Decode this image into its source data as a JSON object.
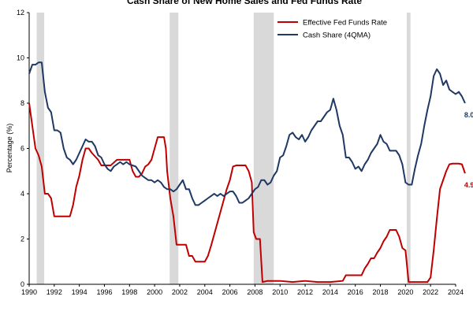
{
  "chart_data": {
    "type": "line",
    "title": "Cash Share of New Home Sales and Fed Funds Rate",
    "ylabel": "Percentage (%)",
    "xlabel": "",
    "xlim": [
      1990,
      2024
    ],
    "ylim": [
      0,
      12
    ],
    "yticks": [
      0,
      2,
      4,
      6,
      8,
      10,
      12
    ],
    "xticks": [
      1990,
      1992,
      1994,
      1996,
      1998,
      2000,
      2002,
      2004,
      2006,
      2008,
      2010,
      2012,
      2014,
      2016,
      2018,
      2020,
      2022,
      2024
    ],
    "grid": false,
    "legend_position": "top-center",
    "recessions": [
      [
        1990.6,
        1991.2
      ],
      [
        2001.2,
        2001.9
      ],
      [
        2007.9,
        2009.5
      ],
      [
        2020.1,
        2020.4
      ]
    ],
    "series": [
      {
        "name": "Effective Fed Funds Rate",
        "color": "#c00000",
        "end_label": "4.9%",
        "points": [
          [
            1990.0,
            8.0
          ],
          [
            1990.25,
            7.0
          ],
          [
            1990.5,
            6.0
          ],
          [
            1990.75,
            5.7
          ],
          [
            1991.0,
            5.2
          ],
          [
            1991.25,
            4.0
          ],
          [
            1991.5,
            4.0
          ],
          [
            1991.75,
            3.8
          ],
          [
            1992.0,
            3.0
          ],
          [
            1992.5,
            3.0
          ],
          [
            1993.0,
            3.0
          ],
          [
            1993.25,
            3.0
          ],
          [
            1993.5,
            3.5
          ],
          [
            1993.75,
            4.3
          ],
          [
            1994.0,
            4.8
          ],
          [
            1994.25,
            5.5
          ],
          [
            1994.5,
            6.0
          ],
          [
            1994.75,
            6.0
          ],
          [
            1995.0,
            5.8
          ],
          [
            1995.5,
            5.5
          ],
          [
            1995.75,
            5.25
          ],
          [
            1996.0,
            5.25
          ],
          [
            1996.5,
            5.25
          ],
          [
            1997.0,
            5.5
          ],
          [
            1997.5,
            5.5
          ],
          [
            1998.0,
            5.5
          ],
          [
            1998.25,
            5.0
          ],
          [
            1998.5,
            4.75
          ],
          [
            1998.75,
            4.75
          ],
          [
            1999.0,
            4.9
          ],
          [
            1999.25,
            5.2
          ],
          [
            1999.5,
            5.3
          ],
          [
            1999.75,
            5.5
          ],
          [
            2000.0,
            6.0
          ],
          [
            2000.25,
            6.5
          ],
          [
            2000.75,
            6.5
          ],
          [
            2000.9,
            6.0
          ],
          [
            2001.0,
            5.0
          ],
          [
            2001.25,
            3.8
          ],
          [
            2001.5,
            3.0
          ],
          [
            2001.75,
            1.75
          ],
          [
            2002.0,
            1.75
          ],
          [
            2002.5,
            1.75
          ],
          [
            2002.75,
            1.25
          ],
          [
            2003.0,
            1.25
          ],
          [
            2003.25,
            1.0
          ],
          [
            2003.75,
            1.0
          ],
          [
            2004.0,
            1.0
          ],
          [
            2004.25,
            1.25
          ],
          [
            2004.5,
            1.7
          ],
          [
            2004.75,
            2.2
          ],
          [
            2005.0,
            2.7
          ],
          [
            2005.25,
            3.2
          ],
          [
            2005.5,
            3.7
          ],
          [
            2005.75,
            4.2
          ],
          [
            2006.0,
            4.6
          ],
          [
            2006.25,
            5.2
          ],
          [
            2006.5,
            5.25
          ],
          [
            2006.75,
            5.25
          ],
          [
            2007.0,
            5.25
          ],
          [
            2007.25,
            5.25
          ],
          [
            2007.5,
            5.0
          ],
          [
            2007.75,
            4.5
          ],
          [
            2007.9,
            2.3
          ],
          [
            2008.1,
            2.0
          ],
          [
            2008.4,
            2.0
          ],
          [
            2008.6,
            0.1
          ],
          [
            2009.0,
            0.15
          ],
          [
            2010.0,
            0.15
          ],
          [
            2011.0,
            0.1
          ],
          [
            2012.0,
            0.15
          ],
          [
            2013.0,
            0.1
          ],
          [
            2014.0,
            0.1
          ],
          [
            2015.0,
            0.15
          ],
          [
            2015.25,
            0.4
          ],
          [
            2015.75,
            0.4
          ],
          [
            2016.0,
            0.4
          ],
          [
            2016.5,
            0.4
          ],
          [
            2016.75,
            0.7
          ],
          [
            2017.0,
            0.9
          ],
          [
            2017.25,
            1.15
          ],
          [
            2017.5,
            1.15
          ],
          [
            2017.75,
            1.4
          ],
          [
            2018.0,
            1.6
          ],
          [
            2018.25,
            1.9
          ],
          [
            2018.5,
            2.1
          ],
          [
            2018.75,
            2.4
          ],
          [
            2019.0,
            2.4
          ],
          [
            2019.25,
            2.4
          ],
          [
            2019.5,
            2.1
          ],
          [
            2019.75,
            1.6
          ],
          [
            2020.0,
            1.5
          ],
          [
            2020.25,
            0.1
          ],
          [
            2021.0,
            0.1
          ],
          [
            2021.75,
            0.1
          ],
          [
            2022.0,
            0.3
          ],
          [
            2022.25,
            1.5
          ],
          [
            2022.5,
            2.9
          ],
          [
            2022.75,
            4.2
          ],
          [
            2023.0,
            4.6
          ],
          [
            2023.25,
            5.0
          ],
          [
            2023.5,
            5.3
          ],
          [
            2023.75,
            5.33
          ],
          [
            2024.0,
            5.33
          ],
          [
            2024.25,
            5.33
          ],
          [
            2024.5,
            5.3
          ],
          [
            2024.75,
            4.9
          ]
        ]
      },
      {
        "name": "Cash Share (4QMA)",
        "color": "#1f3864",
        "end_label": "8.0%",
        "points": [
          [
            1990.0,
            9.3
          ],
          [
            1990.25,
            9.7
          ],
          [
            1990.5,
            9.7
          ],
          [
            1990.75,
            9.8
          ],
          [
            1991.0,
            9.8
          ],
          [
            1991.25,
            8.5
          ],
          [
            1991.5,
            7.8
          ],
          [
            1991.75,
            7.6
          ],
          [
            1992.0,
            6.8
          ],
          [
            1992.25,
            6.8
          ],
          [
            1992.5,
            6.7
          ],
          [
            1992.75,
            6.0
          ],
          [
            1993.0,
            5.6
          ],
          [
            1993.25,
            5.5
          ],
          [
            1993.5,
            5.3
          ],
          [
            1993.75,
            5.5
          ],
          [
            1994.0,
            5.8
          ],
          [
            1994.25,
            6.1
          ],
          [
            1994.5,
            6.4
          ],
          [
            1994.75,
            6.3
          ],
          [
            1995.0,
            6.3
          ],
          [
            1995.25,
            6.1
          ],
          [
            1995.5,
            5.7
          ],
          [
            1995.75,
            5.6
          ],
          [
            1996.0,
            5.3
          ],
          [
            1996.25,
            5.1
          ],
          [
            1996.5,
            5.0
          ],
          [
            1996.75,
            5.2
          ],
          [
            1997.0,
            5.3
          ],
          [
            1997.25,
            5.4
          ],
          [
            1997.5,
            5.3
          ],
          [
            1997.75,
            5.4
          ],
          [
            1998.0,
            5.3
          ],
          [
            1998.5,
            5.2
          ],
          [
            1998.75,
            5.0
          ],
          [
            1999.0,
            4.8
          ],
          [
            1999.25,
            4.7
          ],
          [
            1999.5,
            4.6
          ],
          [
            1999.75,
            4.6
          ],
          [
            2000.0,
            4.5
          ],
          [
            2000.25,
            4.6
          ],
          [
            2000.5,
            4.5
          ],
          [
            2000.75,
            4.3
          ],
          [
            2001.0,
            4.2
          ],
          [
            2001.25,
            4.2
          ],
          [
            2001.5,
            4.1
          ],
          [
            2001.75,
            4.2
          ],
          [
            2002.0,
            4.4
          ],
          [
            2002.25,
            4.6
          ],
          [
            2002.5,
            4.2
          ],
          [
            2002.75,
            4.2
          ],
          [
            2003.0,
            3.8
          ],
          [
            2003.25,
            3.5
          ],
          [
            2003.5,
            3.5
          ],
          [
            2003.75,
            3.6
          ],
          [
            2004.0,
            3.7
          ],
          [
            2004.25,
            3.8
          ],
          [
            2004.5,
            3.9
          ],
          [
            2004.75,
            4.0
          ],
          [
            2005.0,
            3.9
          ],
          [
            2005.25,
            4.0
          ],
          [
            2005.5,
            3.9
          ],
          [
            2005.75,
            4.0
          ],
          [
            2006.0,
            4.1
          ],
          [
            2006.25,
            4.1
          ],
          [
            2006.5,
            3.9
          ],
          [
            2006.75,
            3.6
          ],
          [
            2007.0,
            3.6
          ],
          [
            2007.25,
            3.7
          ],
          [
            2007.5,
            3.8
          ],
          [
            2007.75,
            4.0
          ],
          [
            2008.0,
            4.2
          ],
          [
            2008.25,
            4.3
          ],
          [
            2008.5,
            4.6
          ],
          [
            2008.75,
            4.6
          ],
          [
            2009.0,
            4.4
          ],
          [
            2009.25,
            4.5
          ],
          [
            2009.5,
            4.8
          ],
          [
            2009.75,
            5.0
          ],
          [
            2010.0,
            5.6
          ],
          [
            2010.25,
            5.7
          ],
          [
            2010.5,
            6.1
          ],
          [
            2010.75,
            6.6
          ],
          [
            2011.0,
            6.7
          ],
          [
            2011.25,
            6.5
          ],
          [
            2011.5,
            6.4
          ],
          [
            2011.75,
            6.6
          ],
          [
            2012.0,
            6.3
          ],
          [
            2012.25,
            6.5
          ],
          [
            2012.5,
            6.8
          ],
          [
            2012.75,
            7.0
          ],
          [
            2013.0,
            7.2
          ],
          [
            2013.25,
            7.2
          ],
          [
            2013.5,
            7.4
          ],
          [
            2013.75,
            7.6
          ],
          [
            2014.0,
            7.7
          ],
          [
            2014.25,
            8.2
          ],
          [
            2014.5,
            7.7
          ],
          [
            2014.75,
            7.0
          ],
          [
            2015.0,
            6.6
          ],
          [
            2015.25,
            5.6
          ],
          [
            2015.5,
            5.6
          ],
          [
            2015.75,
            5.4
          ],
          [
            2016.0,
            5.1
          ],
          [
            2016.25,
            5.2
          ],
          [
            2016.5,
            5.0
          ],
          [
            2016.75,
            5.3
          ],
          [
            2017.0,
            5.5
          ],
          [
            2017.25,
            5.8
          ],
          [
            2017.5,
            6.0
          ],
          [
            2017.75,
            6.2
          ],
          [
            2018.0,
            6.6
          ],
          [
            2018.25,
            6.3
          ],
          [
            2018.5,
            6.2
          ],
          [
            2018.75,
            5.9
          ],
          [
            2019.0,
            5.9
          ],
          [
            2019.25,
            5.9
          ],
          [
            2019.5,
            5.7
          ],
          [
            2019.75,
            5.3
          ],
          [
            2020.0,
            4.5
          ],
          [
            2020.25,
            4.4
          ],
          [
            2020.5,
            4.4
          ],
          [
            2020.75,
            5.1
          ],
          [
            2021.0,
            5.7
          ],
          [
            2021.25,
            6.2
          ],
          [
            2021.5,
            7.0
          ],
          [
            2021.75,
            7.7
          ],
          [
            2022.0,
            8.3
          ],
          [
            2022.25,
            9.2
          ],
          [
            2022.5,
            9.5
          ],
          [
            2022.75,
            9.3
          ],
          [
            2023.0,
            8.8
          ],
          [
            2023.25,
            9.0
          ],
          [
            2023.5,
            8.6
          ],
          [
            2023.75,
            8.5
          ],
          [
            2024.0,
            8.4
          ],
          [
            2024.25,
            8.5
          ],
          [
            2024.5,
            8.3
          ],
          [
            2024.75,
            8.0
          ]
        ]
      }
    ]
  }
}
